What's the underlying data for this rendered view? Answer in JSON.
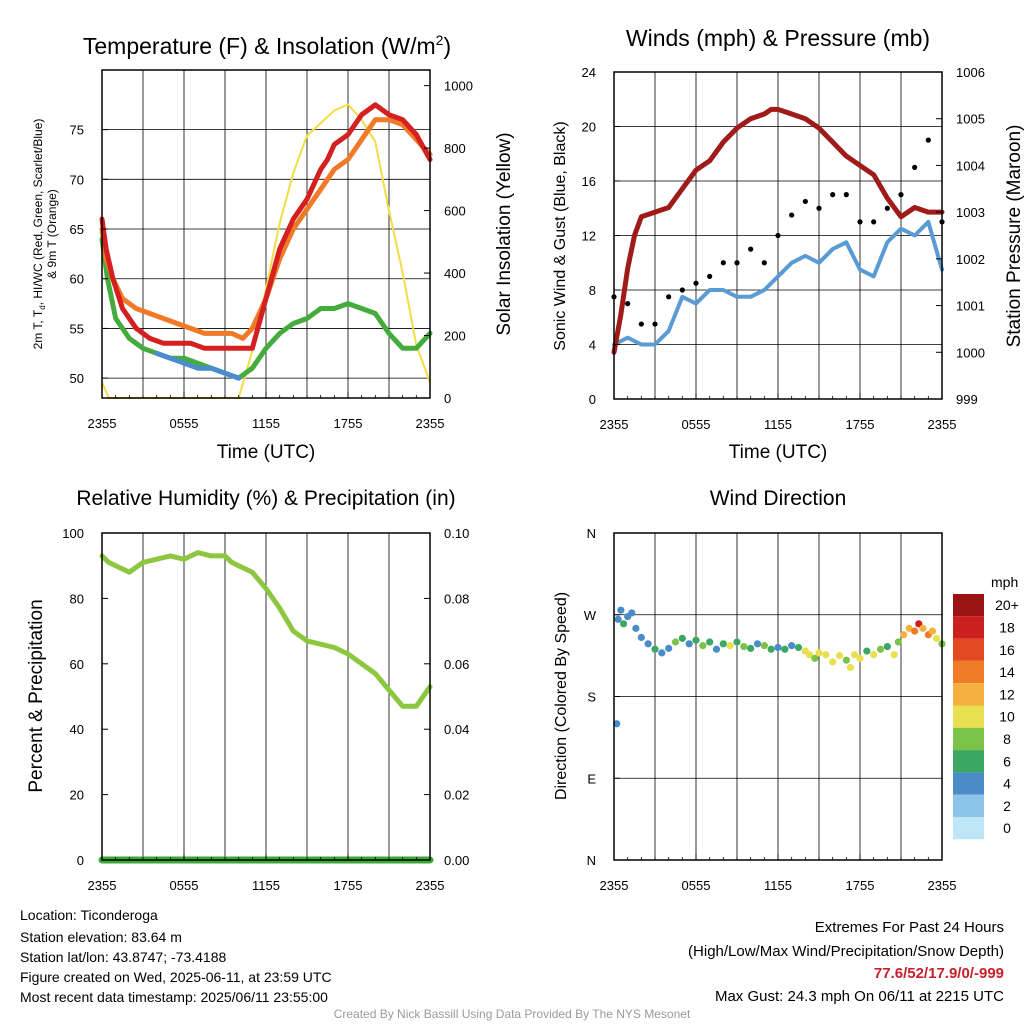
{
  "chart_data": [
    {
      "type": "line",
      "title": "Temperature (F) & Insolation (W/m²)",
      "title_main": "Temperature (F) & Insolation (W/m",
      "title_sup": "2",
      "title_close": ")",
      "xlabel": "Time (UTC)",
      "ylabel_left_line1": "2m T, T",
      "ylabel_left_sub": "d",
      "ylabel_left_line1_rest": ", HI/WC (Red, Green, Scarlet/Blue)",
      "ylabel_left_line2": "& 9m T (Orange)",
      "ylabel_right": "Solar Insolation (Yellow)",
      "xticks": [
        "2355",
        "0555",
        "1155",
        "1755",
        "2355"
      ],
      "ylim": [
        48,
        81
      ],
      "yticks": [
        50,
        55,
        60,
        65,
        70,
        75
      ],
      "ylim_right": [
        0,
        1050
      ],
      "yticks_right": [
        0,
        200,
        400,
        600,
        800,
        1000
      ],
      "grid": true,
      "series": [
        {
          "color": "#d42020",
          "x": [
            0,
            0.3,
            0.8,
            1.5,
            2.5,
            3.5,
            4.5,
            5.5,
            6.5,
            7.5,
            8.5,
            9.5,
            10.3,
            11,
            12,
            13,
            14,
            15,
            16,
            16.5,
            17,
            17.5,
            18,
            19,
            20,
            21,
            22,
            23,
            24
          ],
          "values": [
            66,
            63,
            60,
            57,
            55,
            54,
            53.5,
            53.5,
            53.5,
            53,
            53,
            53,
            53,
            53,
            58,
            63,
            66,
            68,
            71,
            72,
            73.5,
            74,
            74.5,
            76.5,
            77.5,
            76.5,
            76,
            74.5,
            72
          ]
        },
        {
          "color": "#f07a28",
          "x": [
            0,
            0.3,
            0.8,
            1.5,
            2.5,
            3.5,
            4.5,
            5.5,
            6.5,
            7.5,
            8.5,
            9.5,
            10.3,
            11,
            12,
            13,
            14,
            15,
            16,
            17,
            18,
            19,
            20,
            21,
            22,
            23,
            24
          ],
          "values": [
            65,
            62,
            60,
            58,
            57,
            56.5,
            56,
            55.5,
            55,
            54.5,
            54.5,
            54.5,
            54,
            55,
            58,
            62,
            65,
            67,
            69,
            71,
            72,
            74,
            76,
            76,
            75.5,
            74,
            72.5
          ]
        },
        {
          "color": "#44ac3c",
          "x": [
            0,
            0.4,
            1,
            2,
            3,
            4,
            5,
            6,
            7,
            8,
            9,
            10,
            11,
            12,
            13,
            14,
            15,
            16,
            17,
            18,
            19,
            20,
            21,
            22,
            23,
            24
          ],
          "values": [
            64,
            60,
            56,
            54,
            53,
            52.5,
            52,
            52,
            51.5,
            51,
            50.5,
            50,
            51,
            53,
            54.5,
            55.5,
            56,
            57,
            57,
            57.5,
            57,
            56.5,
            54.5,
            53,
            53,
            54.5
          ]
        },
        {
          "color": "#4a8ccc",
          "x": [
            4,
            5,
            6,
            7,
            8,
            9,
            10
          ],
          "values": [
            52.5,
            52,
            51.5,
            51,
            51,
            50.5,
            50
          ]
        },
        {
          "color": "#f2dd46",
          "x": [
            0,
            0.5,
            1,
            2,
            3,
            4,
            5,
            6,
            7,
            8,
            9,
            10,
            11,
            12,
            13,
            14,
            15,
            16,
            17,
            18,
            19,
            20,
            21,
            22,
            23,
            24
          ],
          "values": [
            50,
            0,
            0,
            0,
            0,
            0,
            0,
            0,
            0,
            0,
            0,
            0,
            150,
            350,
            560,
            720,
            840,
            880,
            920,
            940,
            890,
            820,
            600,
            400,
            170,
            50
          ]
        }
      ]
    },
    {
      "type": "line",
      "title": "Winds (mph) & Pressure (mb)",
      "xlabel": "Time (UTC)",
      "ylabel_left": "Sonic Wind & Gust (Blue, Black)",
      "ylabel_right": "Station Pressure (Maroon)",
      "xticks": [
        "2355",
        "0555",
        "1155",
        "1755",
        "2355"
      ],
      "ylim": [
        0,
        24
      ],
      "yticks": [
        0,
        4,
        8,
        12,
        16,
        20,
        24
      ],
      "ylim_right": [
        999,
        1006
      ],
      "yticks_right": [
        999,
        1000,
        1001,
        1002,
        1003,
        1004,
        1005,
        1006
      ],
      "grid": true,
      "series": [
        {
          "color": "#a01a1a",
          "x": [
            0,
            0.5,
            1,
            1.5,
            2,
            3,
            4,
            5,
            6,
            7,
            8,
            9,
            10,
            11,
            11.5,
            12,
            13,
            14,
            15,
            16,
            17,
            18,
            19,
            20,
            21,
            22,
            23,
            24
          ],
          "values": [
            1000,
            1000.8,
            1001.8,
            1002.5,
            1002.9,
            1003,
            1003.1,
            1003.5,
            1003.9,
            1004.1,
            1004.5,
            1004.8,
            1005,
            1005.1,
            1005.2,
            1005.2,
            1005.1,
            1005,
            1004.8,
            1004.5,
            1004.2,
            1004,
            1003.8,
            1003.3,
            1002.9,
            1003.1,
            1003,
            1003
          ]
        },
        {
          "color": "#5a9bd4",
          "x": [
            0,
            1,
            2,
            3,
            4,
            5,
            6,
            7,
            8,
            9,
            10,
            11,
            12,
            13,
            14,
            15,
            16,
            17,
            18,
            19,
            20,
            21,
            22,
            23,
            24
          ],
          "values": [
            4,
            4.5,
            4,
            4,
            5,
            7.5,
            7,
            8,
            8,
            7.5,
            7.5,
            8,
            9,
            10,
            10.5,
            10,
            11,
            11.5,
            9.5,
            9,
            11.5,
            12.5,
            12,
            13,
            9.5
          ]
        },
        {
          "color": "#000000",
          "x": [
            0,
            1,
            2,
            3,
            4,
            5,
            6,
            7,
            8,
            9,
            10,
            11,
            12,
            13,
            14,
            15,
            16,
            17,
            18,
            19,
            20,
            21,
            22,
            23,
            24
          ],
          "values": [
            7.5,
            7,
            5.5,
            5.5,
            7.5,
            8,
            8.5,
            9,
            10,
            10,
            11,
            10,
            12,
            13.5,
            14.5,
            14,
            15,
            15,
            13,
            13,
            14,
            15,
            17,
            19,
            13
          ]
        }
      ]
    },
    {
      "type": "line",
      "title": "Relative Humidity (%) & Precipitation (in)",
      "ylabel_left": "Percent & Precipitation",
      "xticks": [
        "2355",
        "0555",
        "1155",
        "1755",
        "2355"
      ],
      "ylim": [
        0,
        100
      ],
      "yticks": [
        0,
        20,
        40,
        60,
        80,
        100
      ],
      "ylim_right": [
        0,
        0.1
      ],
      "yticks_right": [
        "0.00",
        "0.02",
        "0.04",
        "0.06",
        "0.08",
        "0.10"
      ],
      "grid": true,
      "series": [
        {
          "color": "#8dc63f",
          "x": [
            0,
            0.5,
            1,
            2,
            3,
            4,
            5,
            6,
            7,
            8,
            9,
            9.5,
            10,
            11,
            12,
            13,
            14,
            15,
            16,
            17,
            18,
            19,
            20,
            21,
            22,
            23,
            24
          ],
          "values": [
            93,
            91,
            90,
            88,
            91,
            92,
            93,
            92,
            94,
            93,
            93,
            91,
            90,
            88,
            83,
            77,
            70,
            67,
            66,
            65,
            63,
            60,
            57,
            52,
            47,
            47,
            53
          ]
        },
        {
          "color": "#3aaa35",
          "x": [
            0,
            24
          ],
          "values": [
            0,
            0
          ]
        }
      ]
    },
    {
      "type": "scatter",
      "title": "Wind Direction",
      "ylabel_left": "Direction (Colored By Speed)",
      "xticks": [
        "2355",
        "0555",
        "1155",
        "1755",
        "2355"
      ],
      "yticks": [
        "N",
        "E",
        "S",
        "W",
        "N"
      ],
      "ylim": [
        0,
        360
      ],
      "grid": true,
      "legend_title": "mph",
      "legend_labels": [
        "0",
        "2",
        "4",
        "6",
        "8",
        "10",
        "12",
        "14",
        "16",
        "18",
        "20+"
      ],
      "legend_colors": [
        "#bfe6f7",
        "#8cc4ea",
        "#4a8cc8",
        "#3aa860",
        "#7ac24a",
        "#e8e050",
        "#f5b040",
        "#f07c28",
        "#e24a22",
        "#cc2020",
        "#9a1414"
      ],
      "points": [
        {
          "x": 0.2,
          "y": 150,
          "c": "#4a8cc8"
        },
        {
          "x": 0.3,
          "y": 265,
          "c": "#4a8cc8"
        },
        {
          "x": 0.5,
          "y": 275,
          "c": "#4a8cc8"
        },
        {
          "x": 0.7,
          "y": 260,
          "c": "#3aa860"
        },
        {
          "x": 1.0,
          "y": 268,
          "c": "#4a8cc8"
        },
        {
          "x": 1.3,
          "y": 272,
          "c": "#4a8cc8"
        },
        {
          "x": 1.6,
          "y": 255,
          "c": "#4a8cc8"
        },
        {
          "x": 2.0,
          "y": 245,
          "c": "#4a8cc8"
        },
        {
          "x": 2.5,
          "y": 238,
          "c": "#4a8cc8"
        },
        {
          "x": 3.0,
          "y": 232,
          "c": "#3aa860"
        },
        {
          "x": 3.5,
          "y": 228,
          "c": "#4a8cc8"
        },
        {
          "x": 4.0,
          "y": 233,
          "c": "#4a8cc8"
        },
        {
          "x": 4.5,
          "y": 240,
          "c": "#7ac24a"
        },
        {
          "x": 5.0,
          "y": 244,
          "c": "#3aa860"
        },
        {
          "x": 5.5,
          "y": 238,
          "c": "#4a8cc8"
        },
        {
          "x": 6.0,
          "y": 242,
          "c": "#3aa860"
        },
        {
          "x": 6.5,
          "y": 236,
          "c": "#7ac24a"
        },
        {
          "x": 7.0,
          "y": 240,
          "c": "#3aa860"
        },
        {
          "x": 7.5,
          "y": 232,
          "c": "#4a8cc8"
        },
        {
          "x": 8.0,
          "y": 238,
          "c": "#3aa860"
        },
        {
          "x": 8.5,
          "y": 236,
          "c": "#e8e050"
        },
        {
          "x": 9.0,
          "y": 240,
          "c": "#3aa860"
        },
        {
          "x": 9.5,
          "y": 235,
          "c": "#7ac24a"
        },
        {
          "x": 10.0,
          "y": 233,
          "c": "#3aa860"
        },
        {
          "x": 10.5,
          "y": 238,
          "c": "#4a8cc8"
        },
        {
          "x": 11.0,
          "y": 236,
          "c": "#7ac24a"
        },
        {
          "x": 11.5,
          "y": 232,
          "c": "#3aa860"
        },
        {
          "x": 12.0,
          "y": 234,
          "c": "#4a8cc8"
        },
        {
          "x": 12.5,
          "y": 232,
          "c": "#3aa860"
        },
        {
          "x": 13.0,
          "y": 236,
          "c": "#4a8cc8"
        },
        {
          "x": 13.5,
          "y": 234,
          "c": "#3aa860"
        },
        {
          "x": 14.0,
          "y": 230,
          "c": "#e8e050"
        },
        {
          "x": 14.3,
          "y": 226,
          "c": "#e8e050"
        },
        {
          "x": 14.7,
          "y": 222,
          "c": "#7ac24a"
        },
        {
          "x": 15.0,
          "y": 228,
          "c": "#e8e050"
        },
        {
          "x": 15.5,
          "y": 226,
          "c": "#e8e050"
        },
        {
          "x": 16.0,
          "y": 218,
          "c": "#e8e050"
        },
        {
          "x": 16.5,
          "y": 225,
          "c": "#e8e050"
        },
        {
          "x": 17.0,
          "y": 220,
          "c": "#7ac24a"
        },
        {
          "x": 17.3,
          "y": 212,
          "c": "#e8e050"
        },
        {
          "x": 17.6,
          "y": 226,
          "c": "#e8e050"
        },
        {
          "x": 18.0,
          "y": 222,
          "c": "#e8e050"
        },
        {
          "x": 18.5,
          "y": 230,
          "c": "#3aa860"
        },
        {
          "x": 19.0,
          "y": 226,
          "c": "#e8e050"
        },
        {
          "x": 19.5,
          "y": 232,
          "c": "#7ac24a"
        },
        {
          "x": 20.0,
          "y": 235,
          "c": "#3aa860"
        },
        {
          "x": 20.5,
          "y": 226,
          "c": "#e8e050"
        },
        {
          "x": 20.8,
          "y": 240,
          "c": "#7ac24a"
        },
        {
          "x": 21.2,
          "y": 248,
          "c": "#f5b040"
        },
        {
          "x": 21.6,
          "y": 255,
          "c": "#f5b040"
        },
        {
          "x": 22.0,
          "y": 252,
          "c": "#f07c28"
        },
        {
          "x": 22.3,
          "y": 260,
          "c": "#cc2020"
        },
        {
          "x": 22.6,
          "y": 255,
          "c": "#f5b040"
        },
        {
          "x": 23.0,
          "y": 248,
          "c": "#f07c28"
        },
        {
          "x": 23.3,
          "y": 252,
          "c": "#f5b040"
        },
        {
          "x": 23.6,
          "y": 244,
          "c": "#e8e050"
        },
        {
          "x": 24.0,
          "y": 238,
          "c": "#7ac24a"
        }
      ]
    }
  ],
  "footer": {
    "location": "Location: Ticonderoga",
    "elevation": "Station elevation: 83.64 m",
    "latlon": "Station lat/lon: 43.8747; -73.4188",
    "created": "Figure created on Wed, 2025-06-11, at 23:59 UTC",
    "recent": "Most recent data timestamp: 2025/06/11 23:55:00",
    "extremes_title": "Extremes For Past 24 Hours",
    "extremes_sub": "(High/Low/Max Wind/Precipitation/Snow Depth)",
    "extremes_values": "77.6/52/17.9/0/-999",
    "extremes_color": "#c8202a",
    "max_gust": "Max Gust: 24.3 mph On 06/11 at 2215 UTC",
    "credit": "Created By Nick Bassill Using Data Provided By The NYS Mesonet"
  }
}
